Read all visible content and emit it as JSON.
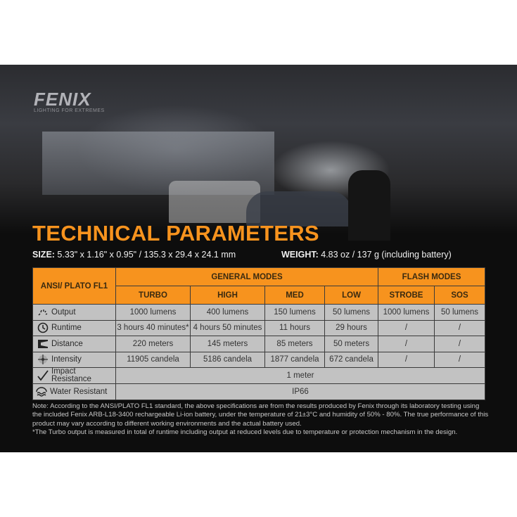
{
  "brand": {
    "logo": "FENIX",
    "tagline": "LIGHTING FOR EXTREMES"
  },
  "title": "TECHNICAL PARAMETERS",
  "size": {
    "label": "SIZE:",
    "value": " 5.33\" x 1.16\" x 0.95\" / 135.3 x 29.4 x 24.1 mm"
  },
  "weight": {
    "label": "WEIGHT:",
    "value": " 4.83 oz / 137 g (including battery)"
  },
  "colors": {
    "accent": "#f7931e",
    "table_cell": "#c2c2c2"
  },
  "table": {
    "corner": "ANSI/ PLATO  FL1",
    "groups": [
      "GENERAL MODES",
      "FLASH MODES"
    ],
    "modes": [
      "TURBO",
      "HIGH",
      "MED",
      "LOW",
      "STROBE",
      "SOS"
    ],
    "rows": [
      {
        "icon": "output-icon",
        "label": "Output",
        "cells": [
          "1000 lumens",
          "400 lumens",
          "150 lumens",
          "50 lumens",
          "1000 lumens",
          "50 lumens"
        ]
      },
      {
        "icon": "clock-icon",
        "label": "Runtime",
        "cells": [
          "3 hours 40 minutes*",
          "4 hours 50 minutes",
          "11 hours",
          "29 hours",
          "/",
          "/"
        ]
      },
      {
        "icon": "beam-distance-icon",
        "label": "Distance",
        "cells": [
          "220 meters",
          "145 meters",
          "85 meters",
          "50 meters",
          "/",
          "/"
        ]
      },
      {
        "icon": "intensity-icon",
        "label": "Intensity",
        "cells": [
          "11905 candela",
          "5186 candela",
          "1877 candela",
          "672 candela",
          "/",
          "/"
        ]
      }
    ],
    "impact": {
      "icon": "impact-check-icon",
      "label_line1": "Impact",
      "label_line2": "Resistance",
      "value": "1 meter"
    },
    "water": {
      "icon": "water-wave-icon",
      "label": "Water Resistant",
      "value": "IP66"
    }
  },
  "notes": [
    "Note: According to the ANSI/PLATO FL1 standard, the above specifications are from the results produced by Fenix through its laboratory testing using the included Fenix ARB-L18-3400 rechargeable Li-ion battery, under the temperature of 21±3°C and humidity of 50% - 80%. The true performance of this product may vary according to different working environments and the actual battery used.",
    "*The Turbo output is measured in total of runtime including output at reduced levels due to temperature or protection mechanism in the design."
  ]
}
